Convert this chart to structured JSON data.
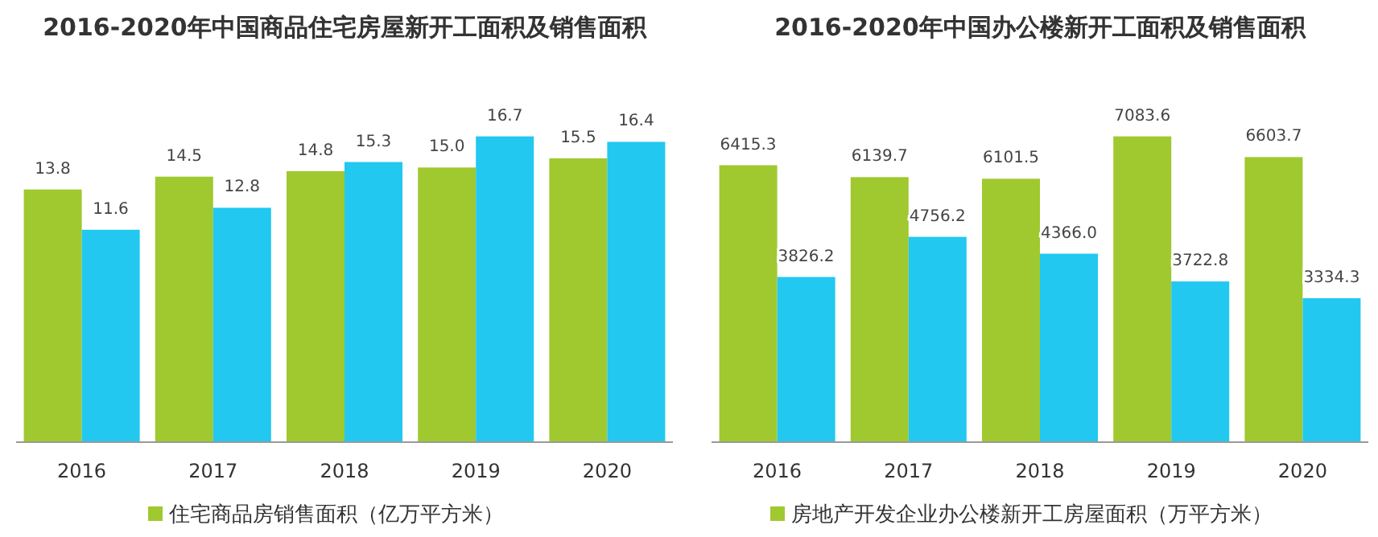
{
  "chart_data": [
    {
      "type": "bar",
      "title": "2016-2020年中国商品住宅房屋新开工面积及销售面积",
      "categories": [
        "2016",
        "2017",
        "2018",
        "2019",
        "2020"
      ],
      "series": [
        {
          "name": "住宅商品房销售面积（亿万平方米）",
          "color": "#9fc92f",
          "values": [
            13.8,
            14.5,
            14.8,
            15.0,
            15.5
          ],
          "value_labels": [
            "13.8",
            "14.5",
            "14.8",
            "15.0",
            "15.5"
          ]
        },
        {
          "color": "#22c8ef",
          "values": [
            11.6,
            12.8,
            15.3,
            16.7,
            16.4
          ]
        }
      ],
      "data_labels": true,
      "legend": "bottom"
    },
    {
      "type": "bar",
      "title": "2016-2020年中国办公楼新开工面积及销售面积",
      "categories": [
        "2016",
        "2017",
        "2018",
        "2019",
        "2020"
      ],
      "series": [
        {
          "name": "房地产开发企业办公楼新开工房屋面积（万平方米）",
          "color": "#9fc92f",
          "values": [
            6415.3,
            6139.7,
            6101.5,
            7083.6,
            6603.7
          ]
        },
        {
          "color": "#22c8ef",
          "values": [
            3826.2,
            4756.2,
            4366.0,
            3722.8,
            3334.3
          ],
          "value_labels": [
            "3826.2",
            "4756.2",
            "4366.0",
            "3722.8",
            "3334.3"
          ]
        }
      ],
      "data_labels": true,
      "legend": "bottom"
    }
  ]
}
